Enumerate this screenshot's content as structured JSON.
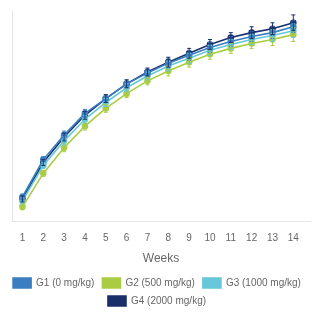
{
  "chart_data": {
    "type": "line",
    "xlabel": "Weeks",
    "x": [
      1,
      2,
      3,
      4,
      5,
      6,
      7,
      8,
      9,
      10,
      11,
      12,
      13,
      14
    ],
    "xlim": [
      0.5,
      14.8
    ],
    "xticks": [
      1,
      2,
      3,
      4,
      5,
      6,
      7,
      8,
      9,
      10,
      11,
      12,
      13,
      14
    ],
    "ylim": [
      75,
      290
    ],
    "tick_labels": "x",
    "grid": false,
    "legend": "bottom",
    "marker": "circle",
    "line_style": "solid",
    "series": [
      {
        "name": "G1 (0 mg/kg)",
        "color": "#3a7ebf",
        "values": [
          100,
          138,
          163,
          185,
          200,
          215,
          226,
          236,
          244,
          252,
          258,
          263,
          267,
          273
        ],
        "errors": [
          3,
          3,
          4,
          4,
          4,
          4,
          4,
          5,
          5,
          5,
          5,
          5,
          6,
          6
        ]
      },
      {
        "name": "G2 (500 mg/kg)",
        "color": "#aacc44",
        "values": [
          90,
          124,
          150,
          172,
          190,
          205,
          218,
          228,
          237,
          245,
          251,
          256,
          260,
          265
        ],
        "errors": [
          3,
          3,
          4,
          4,
          4,
          4,
          4,
          5,
          5,
          5,
          5,
          5,
          6,
          7
        ]
      },
      {
        "name": "G3 (1000 mg/kg)",
        "color": "#66c8d8",
        "values": [
          96,
          132,
          157,
          179,
          196,
          211,
          223,
          233,
          241,
          249,
          255,
          260,
          264,
          269
        ],
        "errors": [
          3,
          3,
          4,
          4,
          4,
          4,
          4,
          5,
          5,
          5,
          5,
          5,
          6,
          7
        ]
      },
      {
        "name": "G4 (2000 mg/kg)",
        "color": "#1a2f6a",
        "values": [
          98,
          135,
          161,
          183,
          200,
          215,
          227,
          237,
          246,
          255,
          262,
          267,
          271,
          277
        ],
        "errors": [
          3,
          3,
          4,
          4,
          4,
          4,
          4,
          5,
          5,
          5,
          5,
          6,
          6,
          8
        ]
      }
    ]
  }
}
